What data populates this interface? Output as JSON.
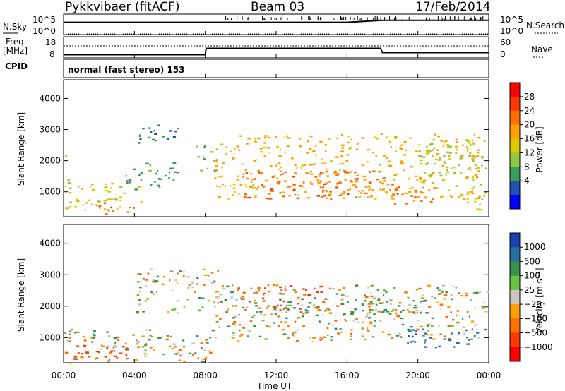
{
  "header": {
    "radar": "Pykkvibaer (fitACF)",
    "beam": "Beam 03",
    "date": "17/Feb/2014"
  },
  "top_panels": {
    "nsky_label": "N.Sky",
    "nsky_ticks": [
      "10^5",
      "10^0"
    ],
    "nsearch_label": "N.Search",
    "nsearch_ticks": [
      "10^5",
      "10^0"
    ],
    "freq_label": "Freq.",
    "freq_unit": "[MHz]",
    "freq_ticks": [
      "18",
      "8"
    ],
    "nave_label": "Nave",
    "nave_ticks": [
      "60",
      "0"
    ],
    "cpid_label": "CPID",
    "cpid_text": "normal (fast stereo) 153"
  },
  "power_panel": {
    "ylabel": "Slant Range [km]",
    "yticks": [
      "4000",
      "3000",
      "2000",
      "1000"
    ],
    "colorbar_label": "Power [dB]",
    "colorbar_ticks": [
      "28",
      "24",
      "20",
      "16",
      "12",
      "8",
      "4"
    ],
    "colorbar_colors": [
      "#ff0000",
      "#ff3a00",
      "#ff7000",
      "#ffa000",
      "#e0c800",
      "#8fc840",
      "#3a9c5a",
      "#2050b0",
      "#0000ff"
    ]
  },
  "velocity_panel": {
    "ylabel": "Slant Range [km]",
    "yticks": [
      "4000",
      "3000",
      "2000",
      "1000"
    ],
    "colorbar_label": "Velocity [m s⁻¹]",
    "colorbar_ticks": [
      "1000",
      "500",
      "100",
      "25",
      "−25",
      "−100",
      "−500",
      "−1000"
    ],
    "colorbar_colors": [
      "#1840b0",
      "#2a6ea0",
      "#3a9050",
      "#6cc040",
      "#c8c8c0",
      "#ffa000",
      "#ff7000",
      "#ff3a00",
      "#ff0000"
    ]
  },
  "xaxis": {
    "label": "Time UT",
    "ticks": [
      "00:00",
      "04:00",
      "08:00",
      "12:00",
      "16:00",
      "20:00",
      "00:00"
    ]
  },
  "chart_data": [
    {
      "type": "line",
      "title": "N.Sky / N.Search",
      "x_unit": "hours UT",
      "xlim": [
        0,
        24
      ],
      "series": [
        {
          "name": "N.Sky",
          "x": [
            0,
            4,
            8,
            12,
            16,
            18,
            20,
            24
          ],
          "values": [
            1000,
            1000,
            1000,
            1000,
            1000,
            3000,
            3000,
            3000
          ]
        }
      ],
      "log_scale": true,
      "ylim": [
        1,
        100000
      ]
    },
    {
      "type": "line",
      "title": "Freq. / Nave",
      "xlim": [
        0,
        24
      ],
      "series": [
        {
          "name": "Freq.",
          "x": [
            0,
            8.0,
            8.05,
            17.9,
            18.0,
            24
          ],
          "values": [
            9.5,
            9.5,
            12.5,
            12.5,
            10.5,
            10.5
          ]
        }
      ],
      "ylim": [
        8,
        18
      ]
    },
    {
      "type": "heatmap",
      "title": "Power [dB]",
      "xlim": [
        0,
        24
      ],
      "ylim": [
        200,
        4600
      ],
      "zlim": [
        0,
        30
      ],
      "blobs": [
        {
          "t0": 0.0,
          "t1": 0.5,
          "r0": 400,
          "r1": 2200,
          "z": 12
        },
        {
          "t0": 0.5,
          "t1": 4.5,
          "r0": 400,
          "r1": 1300,
          "z": 14
        },
        {
          "t0": 1.5,
          "t1": 4.0,
          "r0": 300,
          "r1": 700,
          "z": 24
        },
        {
          "t0": 3.5,
          "t1": 6.5,
          "r0": 1100,
          "r1": 2000,
          "z": 8
        },
        {
          "t0": 4.0,
          "t1": 6.5,
          "r0": 2500,
          "r1": 3200,
          "z": 6
        },
        {
          "t0": 7.5,
          "t1": 9.0,
          "r0": 1700,
          "r1": 2500,
          "z": 10
        },
        {
          "t0": 8.5,
          "t1": 23.5,
          "r0": 800,
          "r1": 2900,
          "z": 18
        },
        {
          "t0": 10.0,
          "t1": 19.0,
          "r0": 800,
          "r1": 1700,
          "z": 24
        },
        {
          "t0": 18.5,
          "t1": 21.0,
          "r0": 600,
          "r1": 1200,
          "z": 22
        },
        {
          "t0": 20.0,
          "t1": 24.0,
          "r0": 1500,
          "r1": 2700,
          "z": 12
        },
        {
          "t0": 22.5,
          "t1": 24.0,
          "r0": 400,
          "r1": 1100,
          "z": 14
        }
      ]
    },
    {
      "type": "heatmap",
      "title": "Velocity [m s^-1]",
      "xlim": [
        0,
        24
      ],
      "ylim": [
        200,
        4600
      ],
      "zlim": [
        -1000,
        1000
      ],
      "blobs": [
        {
          "t0": 0.0,
          "t1": 8.5,
          "r0": 200,
          "r1": 1300,
          "z": 0
        },
        {
          "t0": 0.5,
          "t1": 4.0,
          "r0": 300,
          "r1": 900,
          "z": -400
        },
        {
          "t0": 4.0,
          "t1": 9.0,
          "r0": 1800,
          "r1": 3200,
          "z": 0
        },
        {
          "t0": 8.5,
          "t1": 24.0,
          "r0": 900,
          "r1": 2700,
          "z": 0
        },
        {
          "t0": 9.5,
          "t1": 14.5,
          "r0": 1900,
          "r1": 2700,
          "z": -300
        },
        {
          "t0": 12.0,
          "t1": 19.0,
          "r0": 1700,
          "r1": 2300,
          "z": 150
        },
        {
          "t0": 19.0,
          "t1": 23.5,
          "r0": 700,
          "r1": 1300,
          "z": 600
        },
        {
          "t0": 20.0,
          "t1": 22.0,
          "r0": 2100,
          "r1": 2700,
          "z": 100
        }
      ]
    }
  ]
}
